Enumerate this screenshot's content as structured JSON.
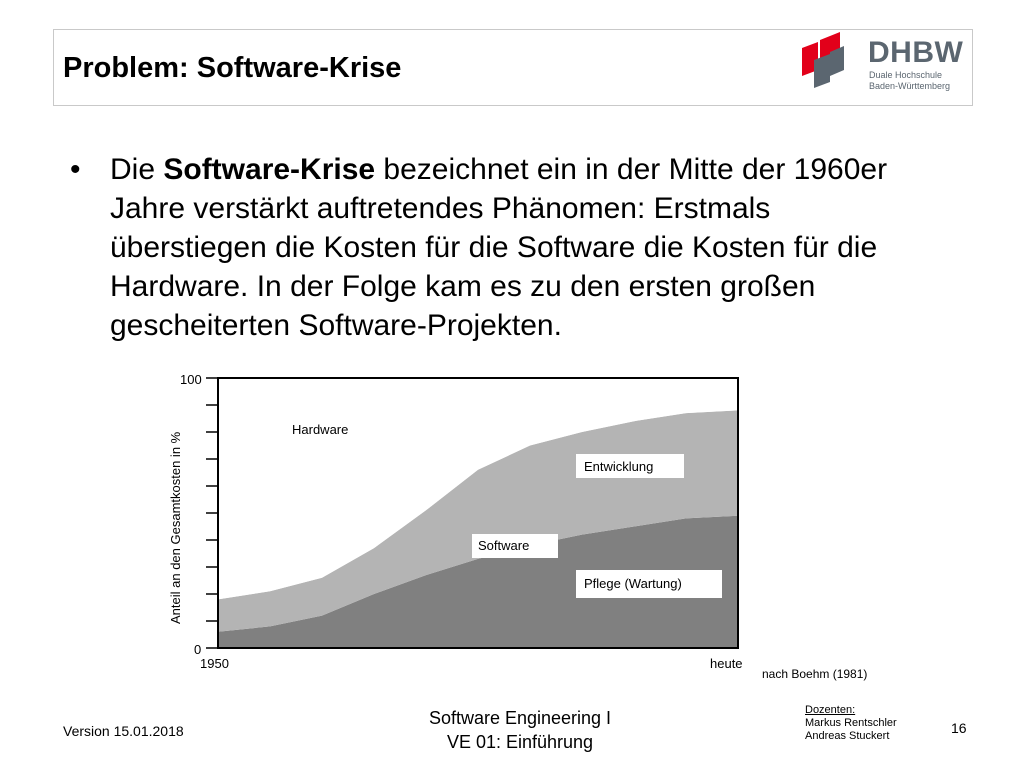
{
  "slide": {
    "title": "Problem: Software-Krise",
    "bullet_bold": "Software-Krise",
    "bullet_pre": "Die ",
    "bullet_post": " bezeichnet ein in der Mitte der 1960er Jahre verstärkt auftretendes Phänomen: Erstmals überstiegen die Kosten für die Software die Kosten für die Hardware. In der Folge kam es zu den ersten großen gescheiterten Software-Projekten."
  },
  "logo": {
    "name": "DHBW",
    "line1": "Duale Hochschule",
    "line2": "Baden-Württemberg",
    "colors": {
      "red": "#e2001a",
      "gray": "#5b6670"
    }
  },
  "chart_data": {
    "type": "area",
    "ylabel": "Anteil an den Gesamtkosten in %",
    "ylim": [
      0,
      100
    ],
    "y_tick_labels": [
      "100",
      "0"
    ],
    "x_tick_labels": [
      "1950",
      "heute"
    ],
    "source": "nach Boehm (1981)",
    "x": [
      0,
      0.1,
      0.2,
      0.3,
      0.4,
      0.5,
      0.6,
      0.7,
      0.8,
      0.9,
      1.0
    ],
    "series": [
      {
        "name": "Pflege (Wartung)",
        "values": [
          6,
          8,
          12,
          20,
          27,
          33,
          38,
          42,
          45,
          48,
          49
        ],
        "color": "#808080"
      },
      {
        "name": "Entwicklung",
        "values": [
          12,
          13,
          14,
          17,
          24,
          33,
          37,
          38,
          39,
          39,
          39
        ],
        "color": "#b4b4b4"
      },
      {
        "name": "Hardware",
        "values": [
          82,
          79,
          74,
          63,
          49,
          34,
          25,
          20,
          16,
          13,
          12
        ],
        "color": "#ffffff"
      }
    ],
    "labels": {
      "hardware": "Hardware",
      "entwicklung": "Entwicklung",
      "software": "Software",
      "pflege": "Pflege (Wartung)"
    }
  },
  "footer": {
    "version": "Version 15.01.2018",
    "course_line1": "Software Engineering I",
    "course_line2": "VE 01: Einführung",
    "docents_label": "Dozenten:",
    "docent1": "Markus Rentschler",
    "docent2": "Andreas Stuckert",
    "page": "16"
  }
}
